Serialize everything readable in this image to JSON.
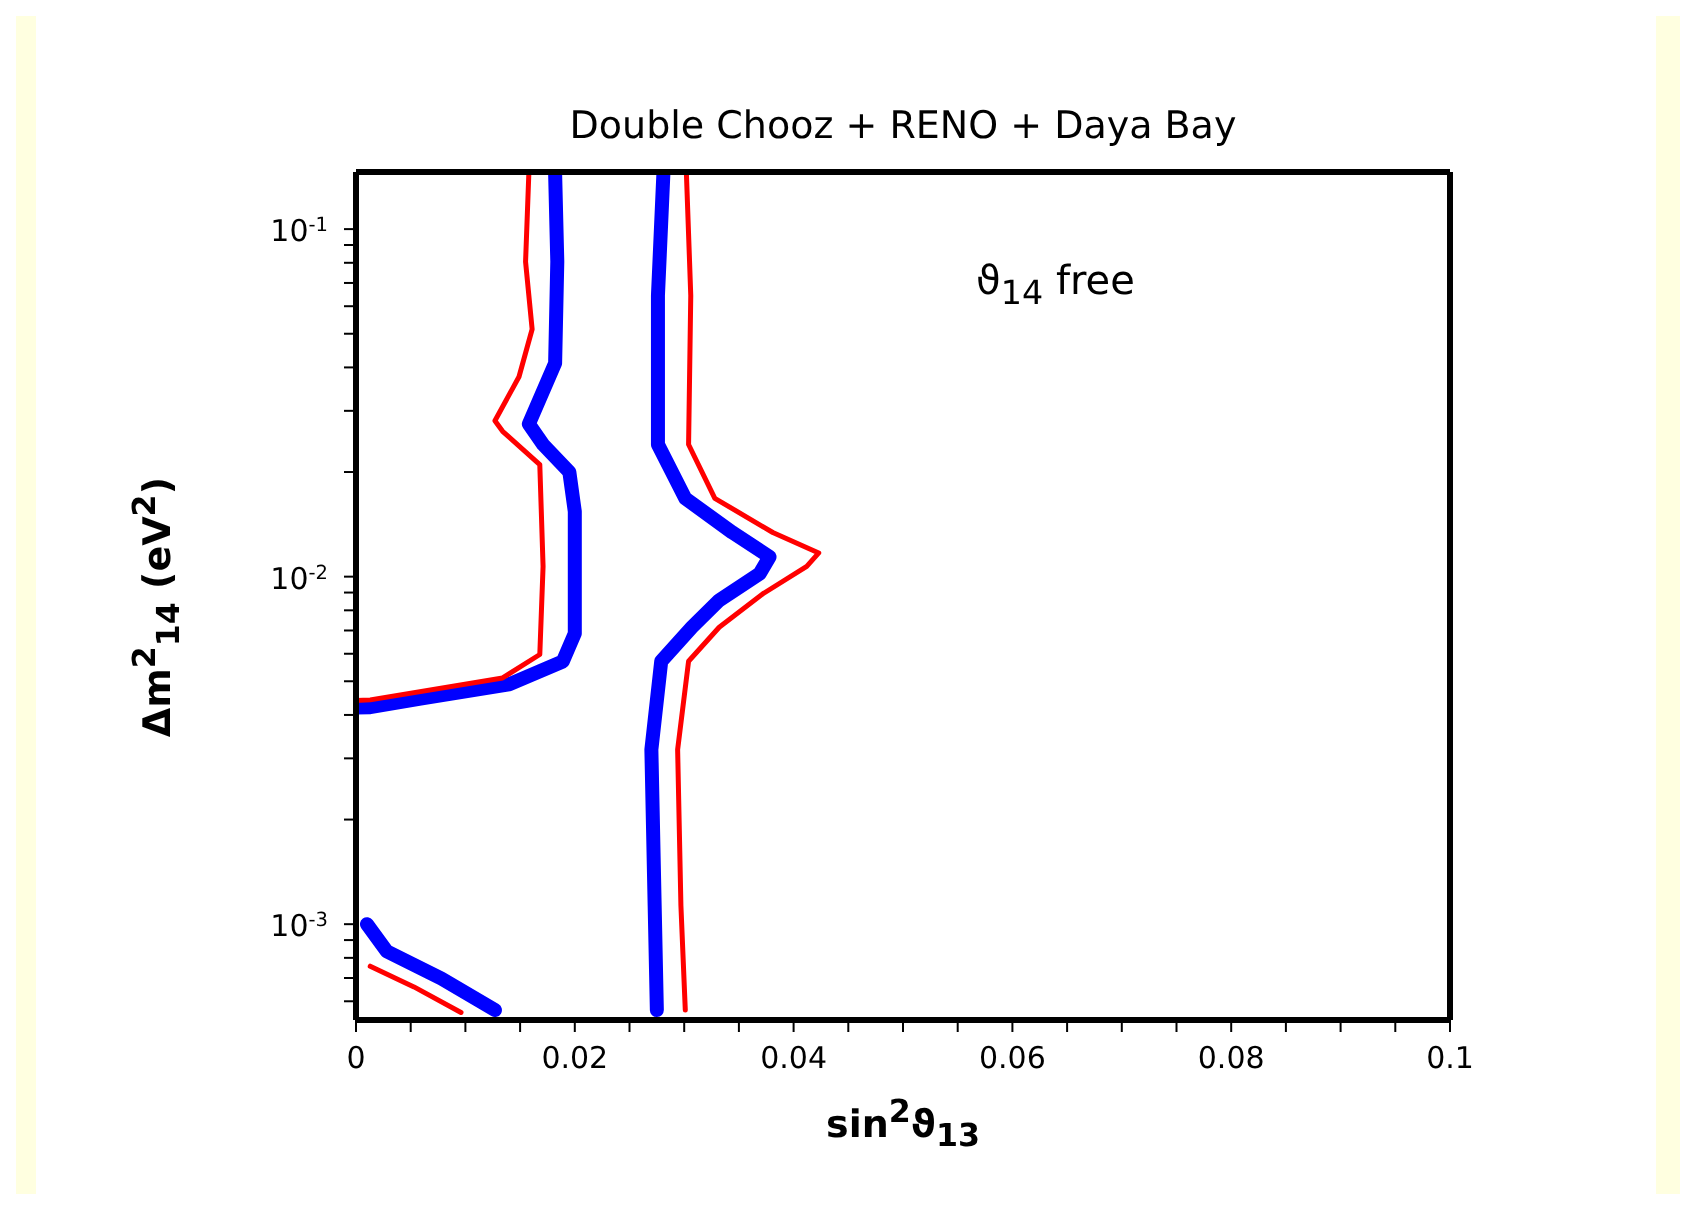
{
  "chart_data": {
    "type": "line",
    "title": "Double Chooz  +  RENO  +  Daya Bay",
    "xlabel": "sin$^{2}$ϑ$_{13}$",
    "ylabel": "Δm$^{2}$$_{14}$ (eV$^{2}$)",
    "annotations": [
      "ϑ$_{14}$  free"
    ],
    "log": "y",
    "legend": false,
    "marker": "none",
    "line_style": "solid",
    "xlim": [
      0,
      0.1
    ],
    "xticks": [
      0,
      {
        "value": 0.005,
        "label": null
      },
      {
        "value": 0.01,
        "label": null
      },
      {
        "value": 0.015,
        "label": null
      },
      0.02,
      {
        "value": 0.025,
        "label": null
      },
      {
        "value": 0.03,
        "label": null
      },
      {
        "value": 0.035,
        "label": null
      },
      0.04,
      {
        "value": 0.045,
        "label": null
      },
      {
        "value": 0.05,
        "label": null
      },
      {
        "value": 0.055,
        "label": null
      },
      0.06,
      {
        "value": 0.065,
        "label": null
      },
      {
        "value": 0.07,
        "label": null
      },
      {
        "value": 0.075,
        "label": null
      },
      0.08,
      {
        "value": 0.085,
        "label": null
      },
      {
        "value": 0.09,
        "label": null
      },
      {
        "value": 0.095,
        "label": null
      },
      0.1
    ],
    "ylim": [
      0.00053,
      0.146
    ],
    "yticks": [
      {
        "value": 0.0006,
        "label": null
      },
      {
        "value": 0.0007,
        "label": null
      },
      {
        "value": 0.0008,
        "label": null
      },
      {
        "value": 0.0009,
        "label": null
      },
      {
        "value": 0.001,
        "label": "10$^{-3}$"
      },
      {
        "value": 0.002,
        "label": null
      },
      {
        "value": 0.003,
        "label": null
      },
      {
        "value": 0.004,
        "label": null
      },
      {
        "value": 0.005,
        "label": null
      },
      {
        "value": 0.006,
        "label": null
      },
      {
        "value": 0.007,
        "label": null
      },
      {
        "value": 0.008,
        "label": null
      },
      {
        "value": 0.009,
        "label": null
      },
      {
        "value": 0.01,
        "label": "10$^{-2}$"
      },
      {
        "value": 0.02,
        "label": null
      },
      {
        "value": 0.03,
        "label": null
      },
      {
        "value": 0.04,
        "label": null
      },
      {
        "value": 0.05,
        "label": null
      },
      {
        "value": 0.06,
        "label": null
      },
      {
        "value": 0.07,
        "label": null
      },
      {
        "value": 0.08,
        "label": null
      },
      {
        "value": 0.09,
        "label": null
      },
      {
        "value": 0.1,
        "label": "10$^{-1}$"
      }
    ],
    "series": [
      {
        "color": "#0000ff",
        "x": [
          0.0182,
          0.0184,
          0.0182,
          0.0158,
          0.0171,
          0.0195,
          0.02,
          0.02,
          0.0189,
          0.014,
          0.0059,
          0.0013,
          0
        ],
        "values": [
          0.145,
          0.0806,
          0.0411,
          0.0275,
          0.024,
          0.02,
          0.0154,
          0.00686,
          0.0057,
          0.0049,
          0.00446,
          0.00421,
          0.0042
        ]
      },
      {
        "color": "#ff0000",
        "x": [
          0.0158,
          0.0155,
          0.0161,
          0.0149,
          0.0127,
          0.0134,
          0.0168,
          0.0171,
          0.0168,
          0.0134,
          0.0013,
          0
        ],
        "values": [
          0.145,
          0.0806,
          0.0515,
          0.0376,
          0.0281,
          0.0262,
          0.021,
          0.0107,
          0.00597,
          0.00511,
          0.00442,
          0.0044
        ]
      },
      {
        "color": "#0000ff",
        "x": [
          0.0281,
          0.0276,
          0.0276,
          0.0301,
          0.0344,
          0.0378,
          0.0369,
          0.0332,
          0.0307,
          0.0279,
          0.027,
          0.0273,
          0.0275
        ],
        "values": [
          0.145,
          0.0644,
          0.024,
          0.0168,
          0.0134,
          0.0114,
          0.0102,
          0.00855,
          0.00715,
          0.00571,
          0.00318,
          0.00113,
          0.000566
        ]
      },
      {
        "color": "#ff0000",
        "x": [
          0.0302,
          0.0306,
          0.0304,
          0.0328,
          0.0381,
          0.0423,
          0.0412,
          0.0372,
          0.0332,
          0.0304,
          0.0294,
          0.0297,
          0.0301
        ],
        "values": [
          0.145,
          0.0644,
          0.024,
          0.0168,
          0.0134,
          0.0117,
          0.0107,
          0.00893,
          0.00715,
          0.00571,
          0.00318,
          0.00113,
          0.000566
        ]
      },
      {
        "color": "#0000ff",
        "x": [
          0.001,
          0.0028,
          0.0078,
          0.0127
        ],
        "values": [
          0.001,
          0.000836,
          0.000698,
          0.000566
        ]
      },
      {
        "color": "#ff0000",
        "x": [
          0.0013,
          0.0053,
          0.0096
        ],
        "values": [
          0.000757,
          0.00066,
          0.000557
        ]
      }
    ]
  }
}
